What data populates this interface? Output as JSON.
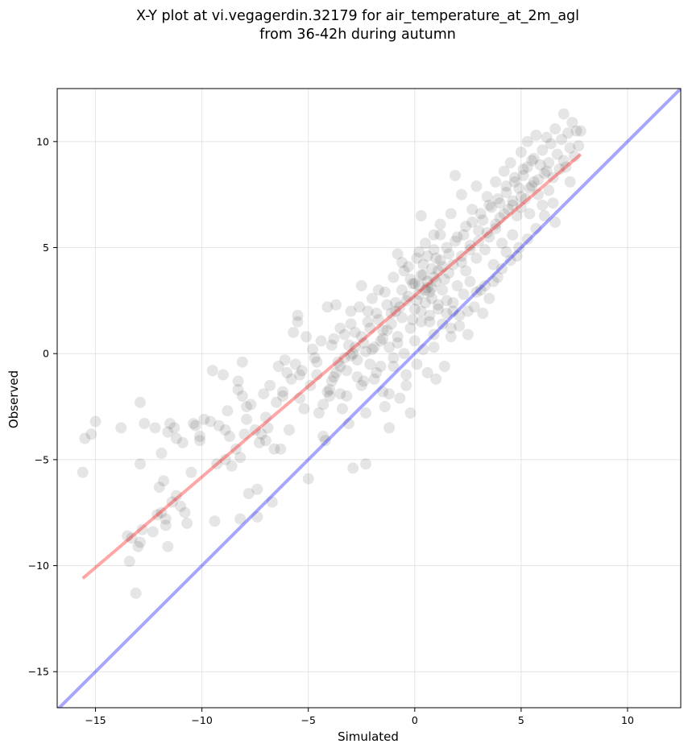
{
  "chart_data": {
    "type": "scatter",
    "title_line1": "X-Y plot at vi.vegagerdin.32179 for air_temperature_at_2m_agl",
    "title_line2": "from 36-42h during autumn",
    "xlabel": "Simulated",
    "ylabel": "Observed",
    "xlim": [
      -16.8,
      12.5
    ],
    "ylim": [
      -16.7,
      12.5
    ],
    "xticks": [
      -15,
      -10,
      -5,
      0,
      5,
      10
    ],
    "yticks": [
      -15,
      -10,
      -5,
      0,
      5,
      10
    ],
    "xtick_labels": [
      "−15",
      "−10",
      "−5",
      "0",
      "5",
      "10"
    ],
    "ytick_labels": [
      "−15",
      "−10",
      "−5",
      "0",
      "5",
      "10"
    ],
    "grid": true,
    "points_color": "#000000",
    "points_alpha": 0.1,
    "fit_line": {
      "color": "#ff0000",
      "alpha": 0.35,
      "x": [
        -15.6,
        7.8
      ],
      "y": [
        -10.6,
        9.4
      ]
    },
    "identity_line": {
      "color": "#0000ff",
      "alpha": 0.35,
      "x": [
        -16.8,
        12.5
      ],
      "y": [
        -16.8,
        12.5
      ]
    },
    "points": [
      [
        -15.6,
        -5.6
      ],
      [
        -15.5,
        -4.0
      ],
      [
        -15.2,
        -3.8
      ],
      [
        -15.0,
        -3.2
      ],
      [
        -13.8,
        -3.5
      ],
      [
        -13.5,
        -8.6
      ],
      [
        -13.4,
        -9.8
      ],
      [
        -13.3,
        -8.7
      ],
      [
        -13.1,
        -11.3
      ],
      [
        -13.0,
        -9.1
      ],
      [
        -12.9,
        -8.9
      ],
      [
        -12.9,
        -2.3
      ],
      [
        -12.9,
        -5.2
      ],
      [
        -12.8,
        -8.3
      ],
      [
        -12.7,
        -3.3
      ],
      [
        -12.3,
        -8.4
      ],
      [
        -12.2,
        -3.5
      ],
      [
        -12.1,
        -7.6
      ],
      [
        -12.0,
        -6.3
      ],
      [
        -11.9,
        -7.5
      ],
      [
        -11.9,
        -4.7
      ],
      [
        -11.8,
        -6.0
      ],
      [
        -11.7,
        -7.8
      ],
      [
        -11.7,
        -8.1
      ],
      [
        -11.6,
        -9.1
      ],
      [
        -11.6,
        -3.7
      ],
      [
        -11.5,
        -3.3
      ],
      [
        -11.4,
        -7.0
      ],
      [
        -11.3,
        -3.5
      ],
      [
        -11.2,
        -6.7
      ],
      [
        -11.2,
        -4.0
      ],
      [
        -11.0,
        -7.2
      ],
      [
        -10.9,
        -4.2
      ],
      [
        -10.8,
        -7.5
      ],
      [
        -10.7,
        -8.0
      ],
      [
        -10.5,
        -5.6
      ],
      [
        -10.4,
        -3.3
      ],
      [
        -10.3,
        -3.4
      ],
      [
        -10.1,
        -3.9
      ],
      [
        -10.1,
        -4.1
      ],
      [
        -9.9,
        -3.1
      ],
      [
        -9.6,
        -3.2
      ],
      [
        -9.5,
        -0.8
      ],
      [
        -9.4,
        -7.9
      ],
      [
        -9.3,
        -5.2
      ],
      [
        -9.2,
        -3.4
      ],
      [
        -9.0,
        -1.0
      ],
      [
        -8.9,
        -3.6
      ],
      [
        -8.9,
        -5.0
      ],
      [
        -8.8,
        -2.7
      ],
      [
        -8.7,
        -3.9
      ],
      [
        -8.6,
        -5.3
      ],
      [
        -8.4,
        -4.5
      ],
      [
        -8.3,
        -1.3
      ],
      [
        -8.3,
        -1.7
      ],
      [
        -8.2,
        -7.8
      ],
      [
        -8.2,
        -4.9
      ],
      [
        -8.1,
        -0.4
      ],
      [
        -8.1,
        -2.0
      ],
      [
        -8.0,
        -3.8
      ],
      [
        -7.9,
        -3.1
      ],
      [
        -7.9,
        -2.5
      ],
      [
        -7.8,
        -6.6
      ],
      [
        -7.7,
        -2.4
      ],
      [
        -7.5,
        -3.6
      ],
      [
        -7.4,
        -6.4
      ],
      [
        -7.4,
        -7.7
      ],
      [
        -7.3,
        -4.2
      ],
      [
        -7.2,
        -3.8
      ],
      [
        -7.1,
        -1.9
      ],
      [
        -7.0,
        -4.1
      ],
      [
        -6.9,
        -3.5
      ],
      [
        -6.8,
        -1.5
      ],
      [
        -6.7,
        -7.0
      ],
      [
        -6.6,
        -4.5
      ],
      [
        -6.5,
        -2.3
      ],
      [
        -6.4,
        -0.6
      ],
      [
        -6.3,
        -4.5
      ],
      [
        -6.2,
        -1.8
      ],
      [
        -6.1,
        -0.3
      ],
      [
        -6.0,
        -0.9
      ],
      [
        -5.9,
        -3.6
      ],
      [
        -5.8,
        -1.2
      ],
      [
        -5.7,
        1.0
      ],
      [
        -5.6,
        -0.5
      ],
      [
        -5.5,
        1.5
      ],
      [
        -5.5,
        1.8
      ],
      [
        -5.4,
        -2.1
      ],
      [
        -5.3,
        -0.8
      ],
      [
        -5.2,
        -2.6
      ],
      [
        -5.1,
        0.8
      ],
      [
        -5.0,
        -5.9
      ],
      [
        -4.9,
        -1.5
      ],
      [
        -4.8,
        0.2
      ],
      [
        -4.7,
        -0.2
      ],
      [
        -4.6,
        -1.0
      ],
      [
        -4.5,
        -2.8
      ],
      [
        -4.4,
        0.6
      ],
      [
        -4.3,
        -3.9
      ],
      [
        -4.2,
        -4.1
      ],
      [
        -4.1,
        2.2
      ],
      [
        -4.0,
        -1.7
      ],
      [
        -4.0,
        -2.0
      ],
      [
        -3.9,
        0.4
      ],
      [
        -3.8,
        -1.1
      ],
      [
        -3.7,
        2.3
      ],
      [
        -3.6,
        -0.4
      ],
      [
        -3.5,
        1.2
      ],
      [
        -3.5,
        -1.9
      ],
      [
        -3.4,
        -2.6
      ],
      [
        -3.3,
        0.9
      ],
      [
        -3.2,
        -0.8
      ],
      [
        -3.1,
        -3.3
      ],
      [
        -3.0,
        2.0
      ],
      [
        -3.0,
        -0.1
      ],
      [
        -2.9,
        -5.4
      ],
      [
        -2.8,
        1.0
      ],
      [
        -2.8,
        0.3
      ],
      [
        -2.7,
        -1.1
      ],
      [
        -2.6,
        2.2
      ],
      [
        -2.5,
        3.2
      ],
      [
        -2.5,
        -1.5
      ],
      [
        -2.4,
        0.5
      ],
      [
        -2.3,
        -2.8
      ],
      [
        -2.3,
        -5.2
      ],
      [
        -2.2,
        1.5
      ],
      [
        -2.1,
        -0.5
      ],
      [
        -2.0,
        2.6
      ],
      [
        -2.0,
        0.2
      ],
      [
        -1.9,
        -1.2
      ],
      [
        -1.8,
        1.9
      ],
      [
        -1.8,
        -0.9
      ],
      [
        -1.7,
        3.0
      ],
      [
        -1.6,
        0.6
      ],
      [
        -1.5,
        -1.8
      ],
      [
        -1.5,
        1.1
      ],
      [
        -1.4,
        -2.5
      ],
      [
        -1.3,
        2.3
      ],
      [
        -1.2,
        0.3
      ],
      [
        -1.2,
        -3.5
      ],
      [
        -1.1,
        1.4
      ],
      [
        -1.0,
        3.6
      ],
      [
        -1.0,
        -0.6
      ],
      [
        -0.9,
        2.0
      ],
      [
        -0.8,
        0.8
      ],
      [
        -0.8,
        4.7
      ],
      [
        -0.7,
        -2.1
      ],
      [
        -0.6,
        1.7
      ],
      [
        -0.6,
        3.0
      ],
      [
        -0.5,
        0.0
      ],
      [
        -0.4,
        2.5
      ],
      [
        -0.4,
        -1.0
      ],
      [
        -0.3,
        4.1
      ],
      [
        -0.2,
        1.2
      ],
      [
        -0.2,
        -2.8
      ],
      [
        -0.1,
        3.3
      ],
      [
        0.0,
        0.6
      ],
      [
        0.0,
        2.1
      ],
      [
        0.1,
        4.5
      ],
      [
        0.1,
        -0.5
      ],
      [
        0.2,
        2.8
      ],
      [
        0.3,
        6.5
      ],
      [
        0.3,
        1.5
      ],
      [
        0.4,
        3.7
      ],
      [
        0.4,
        0.2
      ],
      [
        0.5,
        2.4
      ],
      [
        0.5,
        5.2
      ],
      [
        0.6,
        -0.9
      ],
      [
        0.6,
        3.1
      ],
      [
        0.7,
        1.8
      ],
      [
        0.8,
        4.0
      ],
      [
        0.8,
        2.6
      ],
      [
        0.9,
        5.6
      ],
      [
        0.9,
        0.9
      ],
      [
        1.0,
        3.4
      ],
      [
        1.0,
        -1.2
      ],
      [
        1.1,
        2.1
      ],
      [
        1.2,
        4.4
      ],
      [
        1.2,
        6.1
      ],
      [
        1.3,
        1.4
      ],
      [
        1.3,
        3.0
      ],
      [
        1.4,
        -0.6
      ],
      [
        1.5,
        5.0
      ],
      [
        1.5,
        2.5
      ],
      [
        1.6,
        3.8
      ],
      [
        1.7,
        0.8
      ],
      [
        1.7,
        6.6
      ],
      [
        1.8,
        4.2
      ],
      [
        1.8,
        2.0
      ],
      [
        1.9,
        8.4
      ],
      [
        2.0,
        3.2
      ],
      [
        2.0,
        5.5
      ],
      [
        2.1,
        1.3
      ],
      [
        2.2,
        4.6
      ],
      [
        2.2,
        7.5
      ],
      [
        2.3,
        2.8
      ],
      [
        2.4,
        3.9
      ],
      [
        2.4,
        6.0
      ],
      [
        2.5,
        0.9
      ],
      [
        2.6,
        5.1
      ],
      [
        2.6,
        3.4
      ],
      [
        2.7,
        6.8
      ],
      [
        2.8,
        2.2
      ],
      [
        2.9,
        4.5
      ],
      [
        2.9,
        7.9
      ],
      [
        3.0,
        5.8
      ],
      [
        3.1,
        3.0
      ],
      [
        3.2,
        6.3
      ],
      [
        3.2,
        1.9
      ],
      [
        3.3,
        4.9
      ],
      [
        3.4,
        7.4
      ],
      [
        3.5,
        5.5
      ],
      [
        3.5,
        2.6
      ],
      [
        3.6,
        6.9
      ],
      [
        3.7,
        4.2
      ],
      [
        3.8,
        8.1
      ],
      [
        3.8,
        5.9
      ],
      [
        3.9,
        3.6
      ],
      [
        4.0,
        7.1
      ],
      [
        4.0,
        6.4
      ],
      [
        4.1,
        5.2
      ],
      [
        4.2,
        8.6
      ],
      [
        4.3,
        7.6
      ],
      [
        4.3,
        4.8
      ],
      [
        4.4,
        6.8
      ],
      [
        4.5,
        9.0
      ],
      [
        4.6,
        7.2
      ],
      [
        4.6,
        5.6
      ],
      [
        4.7,
        8.1
      ],
      [
        4.8,
        6.5
      ],
      [
        4.8,
        4.6
      ],
      [
        4.9,
        7.8
      ],
      [
        5.0,
        9.5
      ],
      [
        5.0,
        6.9
      ],
      [
        5.1,
        8.4
      ],
      [
        5.2,
        7.3
      ],
      [
        5.3,
        10.0
      ],
      [
        5.3,
        8.8
      ],
      [
        5.4,
        6.6
      ],
      [
        5.5,
        7.9
      ],
      [
        5.6,
        9.2
      ],
      [
        5.6,
        8.1
      ],
      [
        5.7,
        10.3
      ],
      [
        5.8,
        7.5
      ],
      [
        5.9,
        8.9
      ],
      [
        6.0,
        9.6
      ],
      [
        6.0,
        7.0
      ],
      [
        6.1,
        8.5
      ],
      [
        6.2,
        10.2
      ],
      [
        6.3,
        9.0
      ],
      [
        6.3,
        7.7
      ],
      [
        6.4,
        9.9
      ],
      [
        6.5,
        8.3
      ],
      [
        6.6,
        10.6
      ],
      [
        6.6,
        6.2
      ],
      [
        6.7,
        9.4
      ],
      [
        6.8,
        8.7
      ],
      [
        6.9,
        10.1
      ],
      [
        7.0,
        9.1
      ],
      [
        7.0,
        11.3
      ],
      [
        7.1,
        8.8
      ],
      [
        7.2,
        10.4
      ],
      [
        7.3,
        9.7
      ],
      [
        7.4,
        10.9
      ],
      [
        7.5,
        9.3
      ],
      [
        7.6,
        10.5
      ],
      [
        7.7,
        9.8
      ],
      [
        7.8,
        10.5
      ],
      [
        -0.5,
        3.9
      ],
      [
        0.2,
        3.2
      ],
      [
        0.7,
        2.9
      ],
      [
        0.9,
        3.6
      ],
      [
        1.1,
        3.9
      ],
      [
        0.4,
        4.2
      ],
      [
        -0.2,
        3.5
      ],
      [
        0.6,
        3.4
      ],
      [
        1.3,
        4.1
      ],
      [
        0.3,
        3.7
      ],
      [
        0.8,
        3.1
      ],
      [
        -0.3,
        2.7
      ],
      [
        0.1,
        2.5
      ],
      [
        1.4,
        3.5
      ],
      [
        0.5,
        3.0
      ],
      [
        0.0,
        3.3
      ],
      [
        1.0,
        4.5
      ],
      [
        0.6,
        4.6
      ],
      [
        -0.7,
        2.2
      ],
      [
        -1.1,
        1.9
      ],
      [
        -1.5,
        0.7
      ],
      [
        -1.9,
        0.3
      ],
      [
        -2.3,
        0.1
      ],
      [
        -2.7,
        -0.3
      ],
      [
        -3.1,
        0.4
      ],
      [
        -3.5,
        -0.6
      ],
      [
        -3.9,
        -1.3
      ],
      [
        -4.3,
        -2.4
      ],
      [
        -4.1,
        -1.8
      ],
      [
        -3.7,
        -0.9
      ],
      [
        -3.3,
        -0.2
      ],
      [
        -2.9,
        0.0
      ],
      [
        -2.5,
        0.8
      ],
      [
        -2.1,
        1.2
      ],
      [
        -1.7,
        1.6
      ],
      [
        -1.3,
        1.1
      ],
      [
        -0.9,
        2.4
      ],
      [
        2.2,
        4.3
      ],
      [
        2.6,
        4.9
      ],
      [
        3.0,
        5.3
      ],
      [
        3.4,
        5.7
      ],
      [
        3.8,
        6.1
      ],
      [
        4.2,
        6.6
      ],
      [
        4.6,
        7.0
      ],
      [
        5.0,
        7.4
      ],
      [
        5.4,
        7.8
      ],
      [
        5.8,
        8.2
      ],
      [
        6.2,
        8.6
      ],
      [
        1.6,
        4.7
      ],
      [
        1.9,
        5.3
      ],
      [
        2.3,
        5.6
      ],
      [
        2.7,
        6.2
      ],
      [
        3.1,
        6.6
      ],
      [
        3.5,
        7.0
      ],
      [
        3.9,
        7.3
      ],
      [
        4.3,
        7.9
      ],
      [
        4.7,
        8.3
      ],
      [
        5.1,
        8.7
      ],
      [
        5.5,
        9.1
      ],
      [
        0.9,
        4.9
      ],
      [
        1.2,
        5.6
      ],
      [
        0.2,
        4.8
      ],
      [
        -0.6,
        4.3
      ],
      [
        -1.4,
        2.9
      ],
      [
        -2.2,
        2.0
      ],
      [
        -3.0,
        1.4
      ],
      [
        -3.8,
        0.7
      ],
      [
        -4.6,
        -0.4
      ],
      [
        -5.4,
        -1.0
      ],
      [
        -6.2,
        -2.0
      ],
      [
        -7.0,
        -3.0
      ],
      [
        1.8,
        2.4
      ],
      [
        2.1,
        1.8
      ],
      [
        2.5,
        2.0
      ],
      [
        3.3,
        3.2
      ],
      [
        4.1,
        4.0
      ],
      [
        4.9,
        5.0
      ],
      [
        5.7,
        5.9
      ],
      [
        6.5,
        7.1
      ],
      [
        7.3,
        8.1
      ],
      [
        -1.0,
        -0.2
      ],
      [
        -0.8,
        0.5
      ],
      [
        -1.6,
        -0.6
      ],
      [
        -2.4,
        -1.3
      ],
      [
        -3.2,
        -2.0
      ],
      [
        -0.1,
        1.6
      ],
      [
        0.3,
        2.0
      ],
      [
        0.7,
        1.5
      ],
      [
        1.1,
        2.3
      ],
      [
        1.5,
        1.9
      ],
      [
        -1.2,
        -1.9
      ],
      [
        -0.4,
        -1.5
      ],
      [
        0.9,
        0.3
      ],
      [
        1.7,
        1.2
      ],
      [
        2.9,
        2.9
      ],
      [
        3.7,
        3.4
      ],
      [
        4.5,
        4.4
      ],
      [
        5.3,
        5.4
      ],
      [
        6.1,
        6.5
      ]
    ]
  }
}
